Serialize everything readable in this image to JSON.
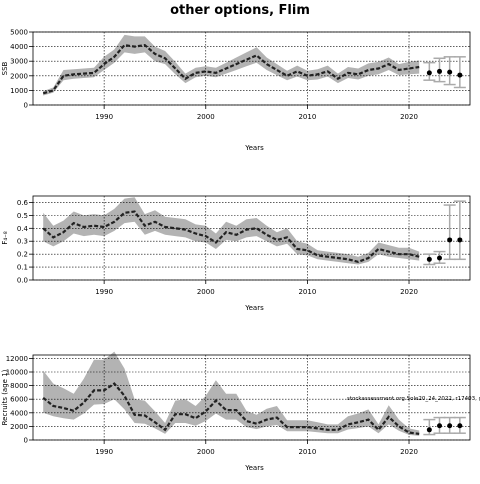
{
  "title": "other options, Flim",
  "chart_data": [
    {
      "id": "ssb",
      "type": "line",
      "xlabel": "Years",
      "ylabel": "SSB",
      "xlim": [
        1983,
        2026
      ],
      "ylim": [
        0,
        5000
      ],
      "xticks": [
        1990,
        2000,
        2010,
        2020
      ],
      "yticks": [
        0,
        1000,
        2000,
        3000,
        4000,
        5000
      ],
      "grid": true,
      "years": [
        1984,
        1985,
        1986,
        1987,
        1988,
        1989,
        1990,
        1991,
        1992,
        1993,
        1994,
        1995,
        1996,
        1997,
        1998,
        1999,
        2000,
        2001,
        2002,
        2003,
        2004,
        2005,
        2006,
        2007,
        2008,
        2009,
        2010,
        2011,
        2012,
        2013,
        2014,
        2015,
        2016,
        2017,
        2018,
        2019,
        2020,
        2021
      ],
      "values": [
        800,
        1000,
        2000,
        2100,
        2150,
        2200,
        2800,
        3300,
        4100,
        4000,
        4100,
        3500,
        3200,
        2500,
        1800,
        2200,
        2300,
        2200,
        2500,
        2800,
        3100,
        3400,
        2800,
        2400,
        2000,
        2300,
        2000,
        2100,
        2300,
        1800,
        2200,
        2100,
        2400,
        2500,
        2800,
        2400,
        2500,
        2600
      ],
      "lower": [
        650,
        850,
        1700,
        1800,
        1850,
        1900,
        2400,
        2900,
        3600,
        3500,
        3600,
        3000,
        2800,
        2100,
        1500,
        1900,
        2000,
        1900,
        2150,
        2400,
        2650,
        2900,
        2400,
        2050,
        1700,
        1950,
        1700,
        1750,
        1950,
        1500,
        1850,
        1750,
        2000,
        2100,
        2400,
        2050,
        2100,
        2150
      ],
      "upper": [
        950,
        1200,
        2400,
        2450,
        2500,
        2550,
        3300,
        3800,
        4800,
        4700,
        4700,
        4000,
        3700,
        2950,
        2150,
        2550,
        2650,
        2550,
        2900,
        3250,
        3600,
        3950,
        3250,
        2800,
        2350,
        2700,
        2350,
        2450,
        2700,
        2150,
        2600,
        2500,
        2850,
        2950,
        3250,
        2800,
        2950,
        3050
      ],
      "projection": {
        "years": [
          2022,
          2023,
          2024,
          2025
        ],
        "points": [
          2200,
          2300,
          2250,
          2050
        ],
        "lower": [
          1700,
          1600,
          1400,
          1200
        ],
        "upper": [
          2900,
          3200,
          3300,
          3300
        ]
      }
    },
    {
      "id": "f",
      "type": "line",
      "xlabel": "Years",
      "ylabel": "F₄₋₈",
      "xlim": [
        1983,
        2026
      ],
      "ylim": [
        0,
        0.65
      ],
      "xticks": [
        1990,
        2000,
        2010,
        2020
      ],
      "yticks": [
        0.0,
        0.1,
        0.2,
        0.3,
        0.4,
        0.5,
        0.6
      ],
      "ytick_labels": [
        "0.0",
        "0.1",
        "0.2",
        "0.3",
        "0.4",
        "0.5",
        "0.6"
      ],
      "grid": true,
      "years": [
        1984,
        1985,
        1986,
        1987,
        1988,
        1989,
        1990,
        1991,
        1992,
        1993,
        1994,
        1995,
        1996,
        1997,
        1998,
        1999,
        2000,
        2001,
        2002,
        2003,
        2004,
        2005,
        2006,
        2007,
        2008,
        2009,
        2010,
        2011,
        2012,
        2013,
        2014,
        2015,
        2016,
        2017,
        2018,
        2019,
        2020,
        2021
      ],
      "values": [
        0.4,
        0.33,
        0.37,
        0.44,
        0.41,
        0.42,
        0.41,
        0.45,
        0.52,
        0.53,
        0.42,
        0.45,
        0.41,
        0.4,
        0.39,
        0.36,
        0.34,
        0.29,
        0.37,
        0.35,
        0.39,
        0.4,
        0.35,
        0.31,
        0.33,
        0.24,
        0.23,
        0.19,
        0.18,
        0.17,
        0.16,
        0.14,
        0.17,
        0.24,
        0.22,
        0.2,
        0.2,
        0.18
      ],
      "lower": [
        0.3,
        0.26,
        0.3,
        0.36,
        0.34,
        0.35,
        0.34,
        0.38,
        0.44,
        0.45,
        0.35,
        0.38,
        0.35,
        0.34,
        0.33,
        0.3,
        0.29,
        0.24,
        0.31,
        0.3,
        0.33,
        0.34,
        0.3,
        0.26,
        0.28,
        0.2,
        0.19,
        0.16,
        0.15,
        0.14,
        0.13,
        0.12,
        0.14,
        0.2,
        0.18,
        0.17,
        0.16,
        0.15
      ],
      "upper": [
        0.52,
        0.42,
        0.46,
        0.53,
        0.5,
        0.51,
        0.5,
        0.55,
        0.63,
        0.64,
        0.51,
        0.54,
        0.49,
        0.48,
        0.47,
        0.43,
        0.42,
        0.36,
        0.45,
        0.42,
        0.47,
        0.48,
        0.42,
        0.37,
        0.4,
        0.3,
        0.28,
        0.23,
        0.22,
        0.21,
        0.2,
        0.18,
        0.21,
        0.29,
        0.27,
        0.25,
        0.25,
        0.22
      ],
      "projection": {
        "years": [
          2022,
          2023,
          2024,
          2025
        ],
        "points": [
          0.16,
          0.17,
          0.31,
          0.31
        ],
        "lower": [
          0.12,
          0.13,
          0.16,
          0.16
        ],
        "upper": [
          0.2,
          0.22,
          0.58,
          0.61
        ]
      }
    },
    {
      "id": "rec",
      "type": "line",
      "xlabel": "Years",
      "ylabel": "Recruits (age 1)",
      "xlim": [
        1983,
        2026
      ],
      "ylim": [
        0,
        12500
      ],
      "xticks": [
        1990,
        2000,
        2010,
        2020
      ],
      "yticks": [
        0,
        2000,
        4000,
        6000,
        8000,
        10000,
        12000
      ],
      "grid": true,
      "years": [
        1984,
        1985,
        1986,
        1987,
        1988,
        1989,
        1990,
        1991,
        1992,
        1993,
        1994,
        1995,
        1996,
        1997,
        1998,
        1999,
        2000,
        2001,
        2002,
        2003,
        2004,
        2005,
        2006,
        2007,
        2008,
        2009,
        2010,
        2011,
        2012,
        2013,
        2014,
        2015,
        2016,
        2017,
        2018,
        2019,
        2020,
        2021
      ],
      "values": [
        6200,
        5000,
        4700,
        4300,
        5500,
        7300,
        7300,
        8300,
        6500,
        3700,
        3600,
        2600,
        1500,
        3800,
        3800,
        3200,
        4200,
        5800,
        4400,
        4400,
        2800,
        2400,
        3000,
        3300,
        1900,
        1900,
        1900,
        1700,
        1500,
        1500,
        2300,
        2600,
        3000,
        1500,
        3400,
        2000,
        1100,
        900
      ],
      "lower": [
        4000,
        3500,
        3200,
        3000,
        3900,
        5200,
        5300,
        6000,
        4500,
        2500,
        2400,
        1700,
        900,
        2500,
        2500,
        2100,
        2800,
        3900,
        3000,
        3000,
        1900,
        1600,
        2000,
        2200,
        1300,
        1300,
        1300,
        1150,
        1000,
        1000,
        1550,
        1750,
        2000,
        1000,
        2300,
        1350,
        750,
        600
      ],
      "upper": [
        10200,
        8300,
        7600,
        6800,
        9000,
        11800,
        11800,
        13000,
        10500,
        6000,
        5800,
        4200,
        2500,
        5800,
        6000,
        5000,
        6500,
        8800,
        6800,
        6800,
        4300,
        3700,
        4600,
        5000,
        2900,
        2900,
        2900,
        2600,
        2300,
        2300,
        3500,
        3900,
        4500,
        2300,
        5100,
        3000,
        1700,
        1400
      ],
      "projection": {
        "years": [
          2022,
          2023,
          2024,
          2025
        ],
        "points": [
          1500,
          2100,
          2100,
          2100
        ],
        "lower": [
          800,
          1000,
          1000,
          1000
        ],
        "upper": [
          3000,
          3300,
          3300,
          3300
        ]
      },
      "annotation": "stockassessment.org Sole20_24_2022, r17403, git:ec2c"
    }
  ]
}
